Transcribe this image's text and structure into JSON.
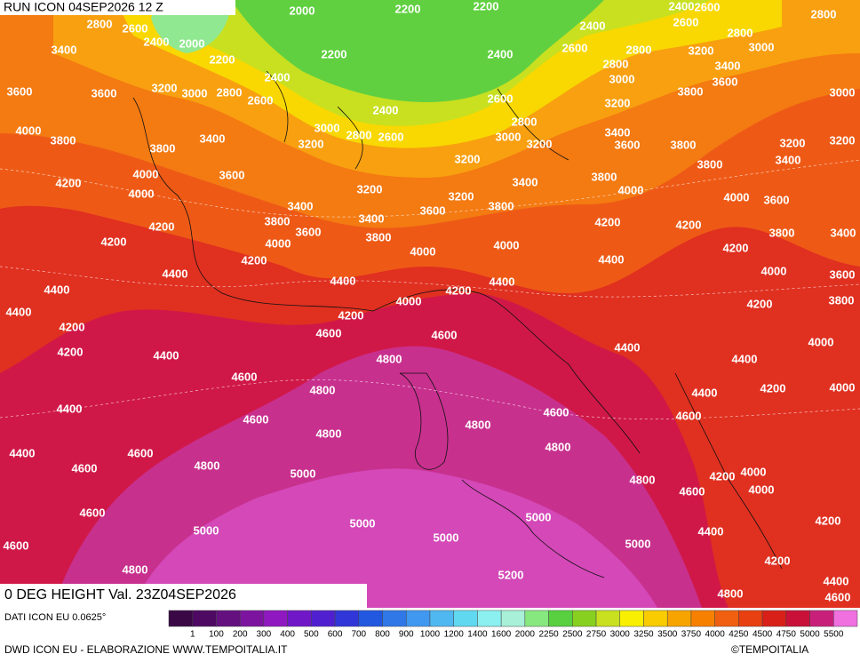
{
  "header": {
    "run": "RUN ICON 04SEP2026 12 Z"
  },
  "map": {
    "title": "0 DEG HEIGHT Val. 23Z04SEP2026",
    "contour_labels": [
      2000,
      2200,
      2200,
      2400,
      2600,
      2800,
      2800,
      2600,
      2400,
      2000,
      2200,
      2200,
      2400,
      2400,
      2600,
      2800,
      2600,
      2800,
      2800,
      3000,
      3200,
      3400,
      3400,
      2400,
      3000,
      3600,
      3600,
      3600,
      3200,
      3000,
      2800,
      2600,
      2600,
      3800,
      3000,
      3200,
      2400,
      2800,
      4000,
      3000,
      2800,
      2600,
      3000,
      3400,
      3800,
      3800,
      3400,
      3200,
      3200,
      3600,
      3800,
      3200,
      3200,
      3400,
      3800,
      3200,
      4000,
      3600,
      3400,
      3800,
      4200,
      4000,
      3200,
      4000,
      3200,
      3400,
      3600,
      3800,
      4000,
      3600,
      3800,
      3400,
      4200,
      4200,
      3600,
      4200,
      3800,
      3400,
      4200,
      4000,
      3800,
      4000,
      4200,
      4000,
      4200,
      4400,
      4000,
      4400,
      3600,
      4400,
      4400,
      4200,
      4400,
      3800,
      4000,
      4200,
      4400,
      4200,
      4200,
      4600,
      4600,
      4000,
      4200,
      4400,
      4800,
      4400,
      4400,
      4600,
      4800,
      4200,
      4000,
      4400,
      4400,
      4600,
      4600,
      4600,
      4800,
      4800,
      4800,
      4400,
      4600,
      4600,
      4800,
      5000,
      4200,
      4000,
      4000,
      4800,
      4600,
      4600,
      5000,
      4200,
      5000,
      5000,
      4400,
      4600,
      5000,
      5000,
      4200,
      4800,
      5200,
      4400,
      4800,
      4600
    ]
  },
  "legend": {
    "source": "DATI ICON EU 0.0625°",
    "labels": [
      1,
      100,
      200,
      300,
      400,
      500,
      600,
      700,
      800,
      900,
      1000,
      1200,
      1400,
      1600,
      2000,
      2250,
      2500,
      2750,
      3000,
      3250,
      3500,
      3750,
      4000,
      4250,
      4500,
      4750,
      5000,
      5500
    ],
    "colors": [
      "#3a0845",
      "#4e0a62",
      "#64107f",
      "#7c149f",
      "#9018c0",
      "#7018c8",
      "#5020d0",
      "#3036d8",
      "#2258e0",
      "#3078e8",
      "#4098f0",
      "#50b8f0",
      "#60d8f0",
      "#8cf0f0",
      "#a8f0d8",
      "#88e880",
      "#58d040",
      "#88d020",
      "#c8e020",
      "#f8f000",
      "#f8cc00",
      "#f8a400",
      "#f88000",
      "#f06010",
      "#e84010",
      "#d82018",
      "#c81038",
      "#c8207a",
      "#f070e0"
    ]
  },
  "footer": {
    "credit": "DWD ICON EU - ELABORAZIONE WWW.TEMPOITALIA.IT",
    "brand": "©TEMPOITALIA"
  }
}
